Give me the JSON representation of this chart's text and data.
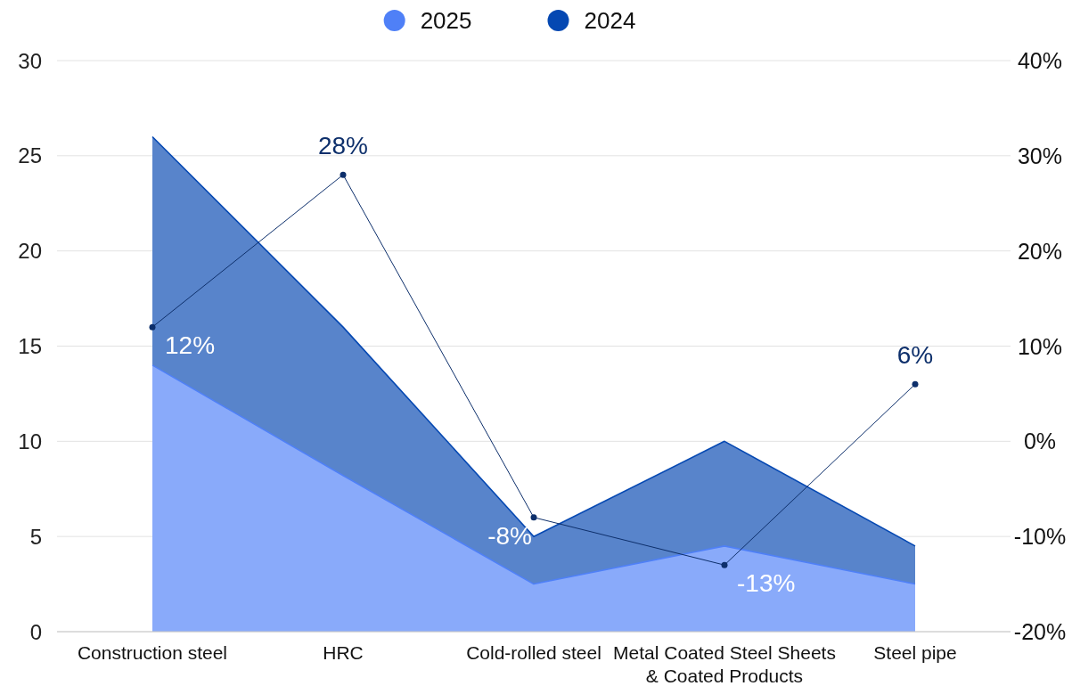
{
  "chart_data": {
    "type": "area",
    "categories": [
      "Construction steel",
      "HRC",
      "Cold-rolled steel",
      "Metal Coated Steel Sheets & Coated Products",
      "Steel pipe"
    ],
    "series": [
      {
        "name": "2025",
        "color": "#4f80f7",
        "values": [
          14,
          8.2,
          2.5,
          4.5,
          2.5
        ]
      },
      {
        "name": "2024",
        "color": "#0548b2",
        "values": [
          26,
          16,
          5,
          10,
          4.5
        ]
      },
      {
        "type": "line",
        "axis": "y2",
        "color": "#0d2f6b",
        "marker": "circle",
        "values": [
          12,
          28,
          -8,
          -13,
          6
        ],
        "value_labels": [
          "12%",
          "28%",
          "-8%",
          "-13%",
          "6%"
        ]
      }
    ],
    "ylim": [
      0,
      30
    ],
    "yticks": [
      0,
      5,
      10,
      15,
      20,
      25,
      30
    ],
    "y2lim": [
      -20,
      40
    ],
    "y2ticks": [
      {
        "value": -20,
        "label": "-20%"
      },
      {
        "value": -10,
        "label": "-10%"
      },
      {
        "value": 0,
        "label": "0%"
      },
      {
        "value": 10,
        "label": "10%"
      },
      {
        "value": 20,
        "label": "20%"
      },
      {
        "value": 30,
        "label": "30%"
      },
      {
        "value": 40,
        "label": "40%"
      }
    ],
    "grid": "y",
    "legend": "top"
  }
}
